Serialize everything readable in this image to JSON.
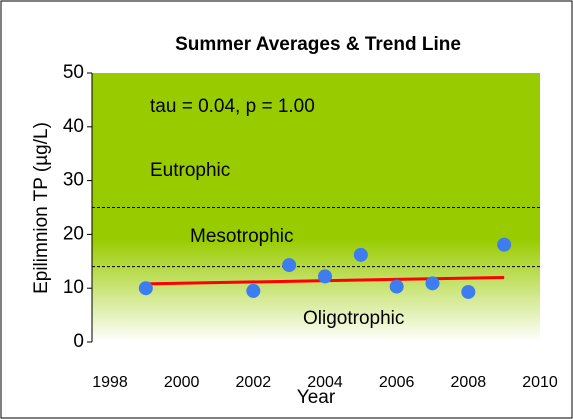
{
  "chart_data": {
    "type": "scatter",
    "title": "Summer Averages  & Trend Line",
    "x_label": "Year",
    "y_label": "Epilimnion TP (µg/L)",
    "x": [
      1999,
      2002,
      2003,
      2004,
      2005,
      2006,
      2007,
      2008,
      2009
    ],
    "values": [
      10,
      9.5,
      14.3,
      12.2,
      16.2,
      10.3,
      10.9,
      9.3,
      18.1
    ],
    "color": "#3d7df0",
    "trend": {
      "x": [
        1999,
        2009
      ],
      "values": [
        10.8,
        12
      ],
      "color": "#ff0000"
    },
    "reference_lines": [
      25,
      14
    ],
    "annotations": [
      "tau = 0.04, p = 1.00",
      "Eutrophic",
      "Mesotrophic",
      "Oligotrophic"
    ],
    "xlim": [
      1998,
      2010
    ],
    "xticks": [
      1998,
      2000,
      2002,
      2004,
      2006,
      2008,
      2010
    ],
    "ylim": [
      0,
      50
    ],
    "yticks": [
      0,
      10,
      20,
      30,
      40,
      50
    ]
  }
}
